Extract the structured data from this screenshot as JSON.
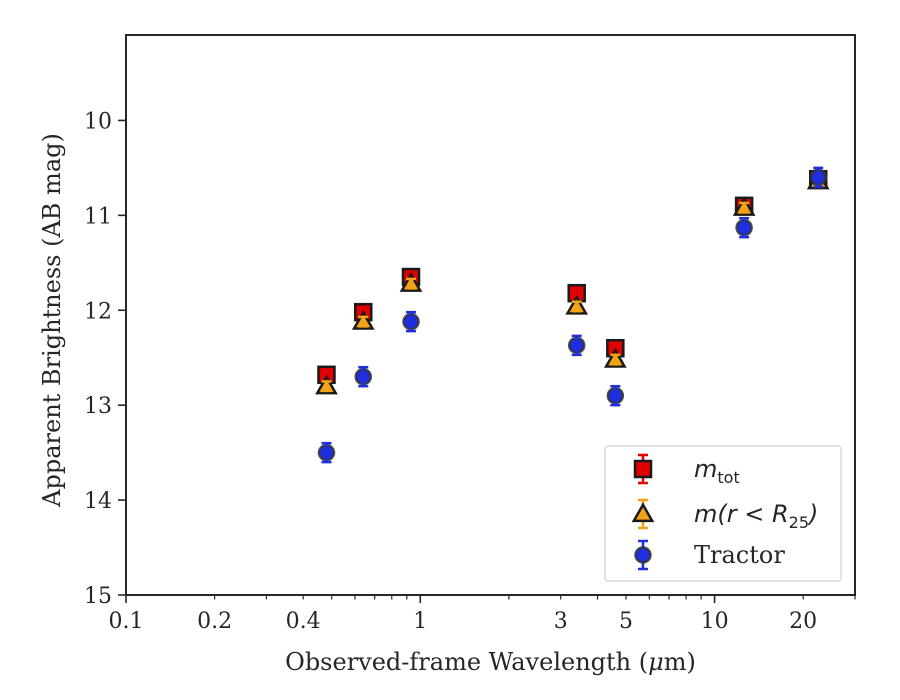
{
  "chart_data": {
    "type": "scatter",
    "title": "",
    "xlabel": "Observed-frame Wavelength (",
    "xlabel_mu": "μ",
    "xlabel_end": "m)",
    "ylabel": "Apparent Brightness (AB mag)",
    "xscale": "log",
    "xlim": [
      0.1,
      30
    ],
    "ylim": [
      15,
      9.1
    ],
    "y_inverted": true,
    "grid": false,
    "legend_position": "lower-right",
    "x_ticks": [
      {
        "value": 0.1,
        "label": "0.1"
      },
      {
        "value": 0.2,
        "label": "0.2"
      },
      {
        "value": 0.4,
        "label": "0.4"
      },
      {
        "value": 1,
        "label": "1"
      },
      {
        "value": 3,
        "label": "3"
      },
      {
        "value": 5,
        "label": "5"
      },
      {
        "value": 10,
        "label": "10"
      },
      {
        "value": 20,
        "label": "20"
      }
    ],
    "y_ticks": [
      {
        "value": 10,
        "label": "10"
      },
      {
        "value": 11,
        "label": "11"
      },
      {
        "value": 12,
        "label": "12"
      },
      {
        "value": 13,
        "label": "13"
      },
      {
        "value": 14,
        "label": "14"
      },
      {
        "value": 15,
        "label": "15"
      }
    ],
    "series": [
      {
        "legend_main": "m",
        "legend_sub": "tot",
        "legend_suffix": "",
        "marker": "square",
        "color": "#e00000",
        "edge": "#1a1a1a",
        "error_color": "#e00000",
        "points": [
          {
            "x": 0.48,
            "y": 12.68,
            "err": 0.05
          },
          {
            "x": 0.64,
            "y": 12.02,
            "err": 0.05
          },
          {
            "x": 0.93,
            "y": 11.65,
            "err": 0.05
          },
          {
            "x": 3.4,
            "y": 11.82,
            "err": 0.05
          },
          {
            "x": 4.6,
            "y": 12.4,
            "err": 0.05
          },
          {
            "x": 12.6,
            "y": 10.9,
            "err": 0.05
          },
          {
            "x": 22.5,
            "y": 10.62,
            "err": 0.05
          }
        ]
      },
      {
        "legend_main": "m(r < R",
        "legend_sub": "25",
        "legend_suffix": ")",
        "marker": "triangle",
        "color": "#f5a316",
        "edge": "#1a1a1a",
        "error_color": "#f5a316",
        "points": [
          {
            "x": 0.48,
            "y": 12.8,
            "err": 0.05
          },
          {
            "x": 0.64,
            "y": 12.12,
            "err": 0.05
          },
          {
            "x": 0.93,
            "y": 11.72,
            "err": 0.05
          },
          {
            "x": 3.4,
            "y": 11.96,
            "err": 0.05
          },
          {
            "x": 4.6,
            "y": 12.52,
            "err": 0.05
          },
          {
            "x": 12.6,
            "y": 10.92,
            "err": 0.05
          },
          {
            "x": 22.5,
            "y": 10.64,
            "err": 0.05
          }
        ]
      },
      {
        "legend_main": "Tractor",
        "legend_sub": "",
        "legend_suffix": "",
        "marker": "circle",
        "color": "#1f2fe0",
        "edge": "#333333",
        "error_color": "#1f2fe0",
        "points": [
          {
            "x": 0.48,
            "y": 13.5,
            "err": 0.1
          },
          {
            "x": 0.64,
            "y": 12.7,
            "err": 0.1
          },
          {
            "x": 0.93,
            "y": 12.12,
            "err": 0.1
          },
          {
            "x": 3.4,
            "y": 12.37,
            "err": 0.1
          },
          {
            "x": 4.6,
            "y": 12.9,
            "err": 0.1
          },
          {
            "x": 12.6,
            "y": 11.13,
            "err": 0.1
          },
          {
            "x": 22.5,
            "y": 10.6,
            "err": 0.1
          }
        ]
      }
    ]
  }
}
